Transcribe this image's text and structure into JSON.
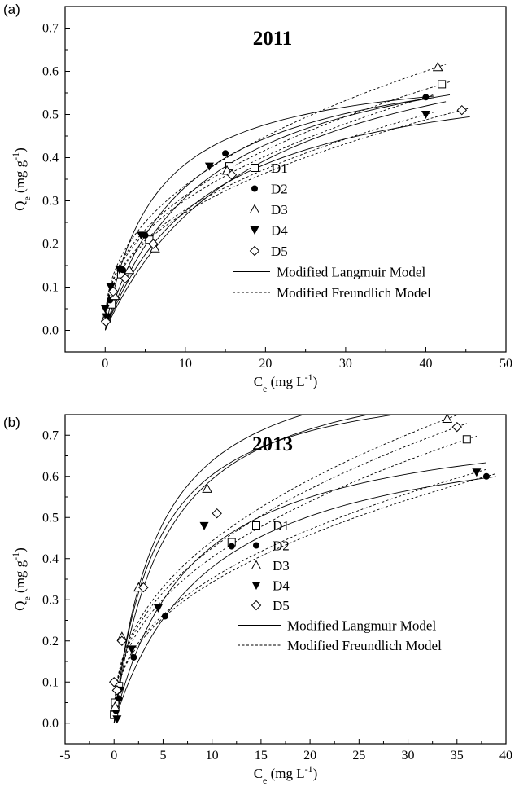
{
  "panels": [
    {
      "label": "(a)",
      "chart_data": {
        "type": "scatter",
        "title": "2011",
        "xlabel": "Ce (mg L-1)",
        "ylabel": "Qe (mg g-1)",
        "xlim": [
          -5,
          50
        ],
        "ylim": [
          -0.05,
          0.75
        ],
        "xticks": [
          0,
          10,
          20,
          30,
          40,
          50
        ],
        "yticks": [
          0.0,
          0.1,
          0.2,
          0.3,
          0.4,
          0.5,
          0.6,
          0.7
        ],
        "legend_position": "center-right",
        "series": [
          {
            "name": "D1",
            "marker": "square-open",
            "points": [
              [
                0.1,
                0.03
              ],
              [
                0.8,
                0.06
              ],
              [
                2.0,
                0.13
              ],
              [
                5.5,
                0.21
              ],
              [
                15.5,
                0.38
              ],
              [
                42.0,
                0.57
              ]
            ]
          },
          {
            "name": "D2",
            "marker": "circle-filled",
            "points": [
              [
                0.1,
                0.02
              ],
              [
                0.6,
                0.07
              ],
              [
                2.2,
                0.14
              ],
              [
                5.0,
                0.22
              ],
              [
                15.0,
                0.41
              ],
              [
                40.0,
                0.54
              ]
            ]
          },
          {
            "name": "D3",
            "marker": "triangle-up-open",
            "points": [
              [
                0.1,
                0.03
              ],
              [
                1.2,
                0.08
              ],
              [
                3.0,
                0.14
              ],
              [
                6.2,
                0.19
              ],
              [
                15.2,
                0.37
              ],
              [
                41.5,
                0.61
              ]
            ]
          },
          {
            "name": "D4",
            "marker": "triangle-down-filled",
            "points": [
              [
                0.0,
                0.05
              ],
              [
                0.2,
                0.03
              ],
              [
                0.7,
                0.1
              ],
              [
                1.8,
                0.14
              ],
              [
                4.5,
                0.22
              ],
              [
                13.0,
                0.38
              ],
              [
                40.0,
                0.5
              ]
            ]
          },
          {
            "name": "D5",
            "marker": "diamond-open",
            "points": [
              [
                0.1,
                0.02
              ],
              [
                1.0,
                0.09
              ],
              [
                2.5,
                0.12
              ],
              [
                6.0,
                0.2
              ],
              [
                15.8,
                0.36
              ],
              [
                44.5,
                0.51
              ]
            ]
          }
        ],
        "fit_legend": [
          "Modified Langmuir Model",
          "Modified Freundlich Model"
        ]
      }
    },
    {
      "label": "(b)",
      "chart_data": {
        "type": "scatter",
        "title": "2013",
        "xlabel": "Ce (mg L-1)",
        "ylabel": "Qe (mg g-1)",
        "xlim": [
          -5,
          40
        ],
        "ylim": [
          -0.05,
          0.75
        ],
        "xticks": [
          -5,
          0,
          5,
          10,
          15,
          20,
          25,
          30,
          35,
          40
        ],
        "yticks": [
          0.0,
          0.1,
          0.2,
          0.3,
          0.4,
          0.5,
          0.6,
          0.7
        ],
        "legend_position": "center",
        "series": [
          {
            "name": "D1",
            "marker": "square-open",
            "points": [
              [
                0.0,
                0.02
              ],
              [
                0.1,
                0.05
              ],
              [
                0.5,
                0.09
              ],
              [
                12.0,
                0.44
              ],
              [
                36.0,
                0.69
              ]
            ]
          },
          {
            "name": "D2",
            "marker": "circle-filled",
            "points": [
              [
                0.2,
                0.03
              ],
              [
                0.5,
                0.06
              ],
              [
                2.0,
                0.16
              ],
              [
                5.2,
                0.26
              ],
              [
                12.0,
                0.43
              ],
              [
                38.0,
                0.6
              ]
            ]
          },
          {
            "name": "D3",
            "marker": "triangle-up-open",
            "points": [
              [
                0.1,
                0.04
              ],
              [
                0.8,
                0.21
              ],
              [
                2.5,
                0.33
              ],
              [
                9.5,
                0.57
              ],
              [
                34.0,
                0.74
              ]
            ]
          },
          {
            "name": "D4",
            "marker": "triangle-down-filled",
            "points": [
              [
                0.3,
                0.01
              ],
              [
                0.6,
                0.08
              ],
              [
                1.8,
                0.18
              ],
              [
                4.5,
                0.28
              ],
              [
                9.2,
                0.48
              ],
              [
                37.0,
                0.61
              ]
            ]
          },
          {
            "name": "D5",
            "marker": "diamond-open",
            "points": [
              [
                0.0,
                0.1
              ],
              [
                0.3,
                0.08
              ],
              [
                0.8,
                0.2
              ],
              [
                3.0,
                0.33
              ],
              [
                10.5,
                0.51
              ],
              [
                35.0,
                0.72
              ]
            ]
          }
        ],
        "fit_legend": [
          "Modified Langmuir Model",
          "Modified Freundlich Model"
        ]
      }
    }
  ]
}
